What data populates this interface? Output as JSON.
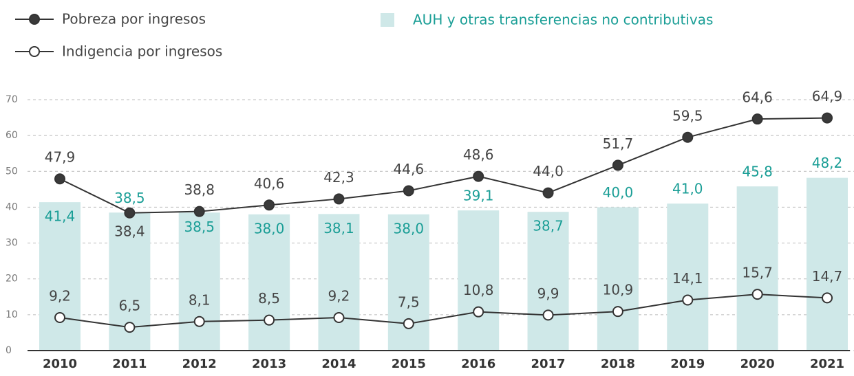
{
  "chart_data": {
    "type": "bar",
    "categories": [
      "2010",
      "2011",
      "2012",
      "2013",
      "2014",
      "2015",
      "2016",
      "2017",
      "2018",
      "2019",
      "2020",
      "2021"
    ],
    "series": [
      {
        "name": "AUH y otras transferencias no contributivas",
        "type": "bar",
        "color": "#cfe8e8",
        "label_color": "#1a9e96",
        "values": [
          41.4,
          38.5,
          38.5,
          38.0,
          38.1,
          38.0,
          39.1,
          38.7,
          40.0,
          41.0,
          45.8,
          48.2
        ],
        "value_labels": [
          "41,4",
          "38,5",
          "38,5",
          "38,0",
          "38,1",
          "38,0",
          "39,1",
          "38,7",
          "40,0",
          "41,0",
          "45,8",
          "48,2"
        ]
      },
      {
        "name": "Pobreza por ingresos",
        "type": "line",
        "color": "#333333",
        "marker_fill": "#3a3a3a",
        "values": [
          47.9,
          38.4,
          38.8,
          40.6,
          42.3,
          44.6,
          48.6,
          44.0,
          51.7,
          59.5,
          64.6,
          64.9
        ],
        "value_labels": [
          "47,9",
          "38,4",
          "38,8",
          "40,6",
          "42,3",
          "44,6",
          "48,6",
          "44,0",
          "51,7",
          "59,5",
          "64,6",
          "64,9"
        ]
      },
      {
        "name": "Indigencia por ingresos",
        "type": "line",
        "color": "#333333",
        "marker_fill": "#ffffff",
        "values": [
          9.2,
          6.5,
          8.1,
          8.5,
          9.2,
          7.5,
          10.8,
          9.9,
          10.9,
          14.1,
          15.7,
          14.7
        ],
        "value_labels": [
          "9,2",
          "6,5",
          "8,1",
          "8,5",
          "9,2",
          "7,5",
          "10,8",
          "9,9",
          "10,9",
          "14,1",
          "15,7",
          "14,7"
        ]
      }
    ],
    "ylim": [
      0,
      70
    ],
    "yticks": [
      0,
      10,
      20,
      30,
      40,
      50,
      60,
      70
    ],
    "grid": true
  }
}
